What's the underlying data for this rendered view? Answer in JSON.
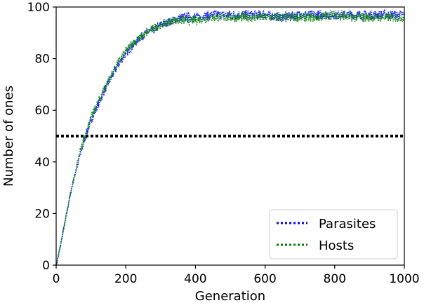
{
  "chart_data": {
    "type": "line",
    "xlabel": "Generation",
    "ylabel": "Number of ones",
    "xlim": [
      0,
      1000
    ],
    "ylim": [
      0,
      100
    ],
    "xticks": [
      0,
      200,
      400,
      600,
      800,
      1000
    ],
    "yticks": [
      0,
      20,
      40,
      60,
      80,
      100
    ],
    "grid": false,
    "legend_position": "lower-right",
    "reference_line": {
      "y": 50,
      "color": "#000000",
      "style": "dotted"
    },
    "series": [
      {
        "name": "Parasites",
        "color": "#0000ff",
        "style": "dotted",
        "x": [
          0,
          10,
          20,
          30,
          40,
          50,
          60,
          70,
          80,
          90,
          100,
          120,
          140,
          160,
          180,
          200,
          220,
          240,
          260,
          280,
          300,
          320,
          340,
          360,
          380,
          400,
          450,
          500,
          550,
          600,
          650,
          700,
          750,
          800,
          850,
          900,
          950,
          1000
        ],
        "y": [
          0,
          6,
          13,
          20,
          27,
          33,
          38,
          43,
          48,
          52,
          56,
          62,
          68,
          73,
          78,
          82,
          85,
          88,
          90,
          91,
          93,
          94,
          95,
          96,
          96,
          96,
          97,
          97,
          97,
          97,
          96,
          97,
          97,
          97,
          97,
          97,
          97,
          97
        ]
      },
      {
        "name": "Hosts",
        "color": "#008000",
        "style": "dotted",
        "x": [
          0,
          10,
          20,
          30,
          40,
          50,
          60,
          70,
          80,
          90,
          100,
          120,
          140,
          160,
          180,
          200,
          220,
          240,
          260,
          280,
          300,
          320,
          340,
          360,
          380,
          400,
          450,
          500,
          550,
          600,
          650,
          700,
          750,
          800,
          850,
          900,
          950,
          1000
        ],
        "y": [
          0,
          6,
          13,
          20,
          27,
          33,
          39,
          44,
          49,
          53,
          57,
          63,
          69,
          74,
          79,
          83,
          86,
          88,
          90,
          92,
          93,
          94,
          95,
          95,
          95,
          95,
          96,
          96,
          96,
          96,
          96,
          96,
          96,
          97,
          96,
          96,
          96,
          96
        ]
      }
    ]
  }
}
